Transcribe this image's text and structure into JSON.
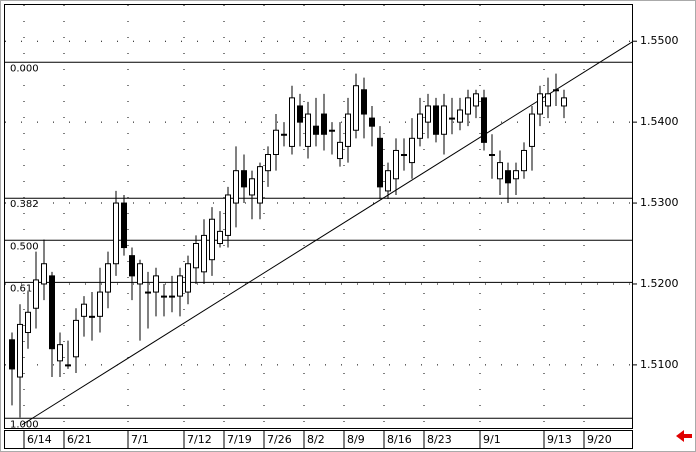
{
  "chart_data": {
    "type": "candlestick",
    "categories": [
      null,
      null,
      "6/14",
      null,
      null,
      null,
      null,
      "6/21",
      null,
      null,
      null,
      null,
      null,
      null,
      null,
      "7/1",
      null,
      null,
      null,
      null,
      null,
      null,
      "7/12",
      null,
      null,
      null,
      null,
      "7/19",
      null,
      null,
      null,
      null,
      "7/26",
      null,
      null,
      null,
      null,
      "8/2",
      null,
      null,
      null,
      null,
      "8/9",
      null,
      null,
      null,
      null,
      "8/16",
      null,
      null,
      null,
      null,
      "8/23",
      null,
      null,
      null,
      null,
      null,
      null,
      "9/1",
      null,
      null,
      null,
      null,
      null,
      null,
      null,
      "9/13",
      null,
      null,
      null,
      null,
      "9/20",
      null,
      null,
      null,
      null,
      null
    ],
    "open": [
      1.5131,
      1.5085,
      1.514,
      1.517,
      1.52,
      1.521,
      1.5105,
      1.51,
      1.511,
      1.516,
      1.516,
      1.516,
      1.519,
      1.5225,
      1.53,
      1.5235,
      1.52,
      1.519,
      1.519,
      1.5185,
      1.5185,
      1.5185,
      1.519,
      1.522,
      1.5215,
      1.523,
      1.525,
      1.526,
      1.53,
      1.534,
      1.531,
      1.53,
      1.534,
      1.536,
      1.5385,
      1.537,
      1.542,
      1.537,
      1.5395,
      1.541,
      1.539,
      1.5355,
      1.537,
      1.539,
      1.544,
      1.5405,
      1.538,
      1.5315,
      1.533,
      1.536,
      1.535,
      1.538,
      1.54,
      1.542,
      1.5385,
      1.5405,
      1.54,
      1.541,
      1.542,
      1.543,
      1.536,
      1.533,
      1.534,
      1.533,
      1.534,
      1.537,
      1.541,
      1.542,
      1.544,
      1.542,
      null,
      null,
      null,
      null,
      null,
      null,
      null,
      null
    ],
    "high": [
      1.514,
      1.5175,
      1.519,
      1.524,
      1.5255,
      1.5215,
      1.514,
      1.513,
      1.517,
      1.5185,
      1.519,
      1.522,
      1.524,
      1.5315,
      1.531,
      1.5245,
      1.523,
      1.5215,
      1.522,
      1.52,
      1.521,
      1.522,
      1.5235,
      1.526,
      1.528,
      1.5295,
      1.529,
      1.532,
      1.537,
      1.536,
      1.534,
      1.535,
      1.537,
      1.541,
      1.54,
      1.5445,
      1.5435,
      1.5425,
      1.543,
      1.5435,
      1.54,
      1.54,
      1.543,
      1.546,
      1.5455,
      1.542,
      1.5395,
      1.535,
      1.538,
      1.538,
      1.5405,
      1.543,
      1.5435,
      1.543,
      1.5435,
      1.543,
      1.543,
      1.544,
      1.544,
      1.544,
      1.5385,
      1.5365,
      1.535,
      1.535,
      1.5375,
      1.542,
      1.5445,
      1.5455,
      1.546,
      1.544,
      null,
      null,
      null,
      null,
      null,
      null,
      null,
      null
    ],
    "low": [
      1.505,
      1.5035,
      1.512,
      1.5145,
      1.518,
      1.5085,
      1.5085,
      1.5095,
      1.509,
      1.5135,
      1.513,
      1.514,
      1.517,
      1.521,
      1.5235,
      1.518,
      1.513,
      1.5145,
      1.516,
      1.516,
      1.5165,
      1.516,
      1.5175,
      1.52,
      1.52,
      1.521,
      1.5245,
      1.5245,
      1.527,
      1.53,
      1.528,
      1.528,
      1.532,
      1.534,
      1.537,
      1.536,
      1.537,
      1.5355,
      1.537,
      1.5365,
      1.536,
      1.5345,
      1.535,
      1.538,
      1.538,
      1.537,
      1.5305,
      1.5305,
      1.531,
      1.534,
      1.533,
      1.537,
      1.538,
      1.5375,
      1.536,
      1.5385,
      1.539,
      1.5395,
      1.5405,
      1.5365,
      1.533,
      1.531,
      1.53,
      1.531,
      1.533,
      1.534,
      1.5395,
      1.5405,
      1.542,
      1.5405,
      null,
      null,
      null,
      null,
      null,
      null,
      null,
      null
    ],
    "close": [
      1.5095,
      1.515,
      1.5165,
      1.5205,
      1.5225,
      1.512,
      1.5125,
      1.51,
      1.5155,
      1.5175,
      1.516,
      1.519,
      1.5225,
      1.53,
      1.5245,
      1.521,
      1.5225,
      1.519,
      1.521,
      1.5185,
      1.5185,
      1.521,
      1.5225,
      1.525,
      1.526,
      1.528,
      1.5265,
      1.531,
      1.534,
      1.532,
      1.533,
      1.5345,
      1.536,
      1.539,
      1.5385,
      1.543,
      1.54,
      1.541,
      1.5385,
      1.5385,
      1.539,
      1.5375,
      1.541,
      1.5445,
      1.541,
      1.5395,
      1.532,
      1.534,
      1.5365,
      1.536,
      1.538,
      1.541,
      1.542,
      1.5385,
      1.542,
      1.5405,
      1.5415,
      1.543,
      1.5435,
      1.5375,
      1.536,
      1.535,
      1.5325,
      1.534,
      1.5365,
      1.541,
      1.5435,
      1.5435,
      1.544,
      1.543,
      null,
      null,
      null,
      null,
      null,
      null,
      null,
      null
    ],
    "ylim": [
      1.5022,
      1.5546
    ],
    "yticks": [
      {
        "value": 1.55,
        "label": "1.5500"
      },
      {
        "value": 1.54,
        "label": "1.5400"
      },
      {
        "value": 1.53,
        "label": "1.5300"
      },
      {
        "value": 1.52,
        "label": "1.5200"
      },
      {
        "value": 1.51,
        "label": "1.5100"
      }
    ],
    "fibonacci": [
      {
        "price": 1.5474,
        "label": "0.000"
      },
      {
        "price": 1.5306,
        "label": "0.382"
      },
      {
        "price": 1.5254,
        "label": "0.500"
      },
      {
        "price": 1.5202,
        "label": "0.618"
      },
      {
        "price": 1.5034,
        "label": "1.000"
      }
    ],
    "trendline": {
      "x": [
        1.25,
        77.5
      ],
      "y": [
        1.5026,
        1.5499
      ]
    },
    "grid": true
  }
}
